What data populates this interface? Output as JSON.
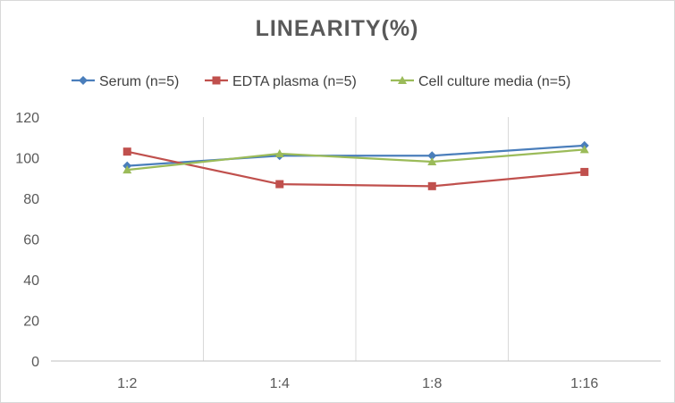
{
  "chart_data": {
    "type": "line",
    "title": "LINEARITY(%)",
    "categories": [
      "1:2",
      "1:4",
      "1:8",
      "1:16"
    ],
    "ylim": [
      0,
      120
    ],
    "yticks": [
      0,
      20,
      40,
      60,
      80,
      100,
      120
    ],
    "grid": "vertical-category-lines",
    "legend_position": "top",
    "series": [
      {
        "name": "Serum (n=5)",
        "marker": "diamond",
        "color": "#4a7ebb",
        "values": [
          96,
          101,
          101,
          106
        ]
      },
      {
        "name": "EDTA plasma (n=5)",
        "marker": "square",
        "color": "#c0504d",
        "values": [
          103,
          87,
          86,
          93
        ]
      },
      {
        "name": "Cell culture media (n=5)",
        "marker": "triangle",
        "color": "#9bbb59",
        "values": [
          94,
          102,
          98,
          104
        ]
      }
    ]
  }
}
